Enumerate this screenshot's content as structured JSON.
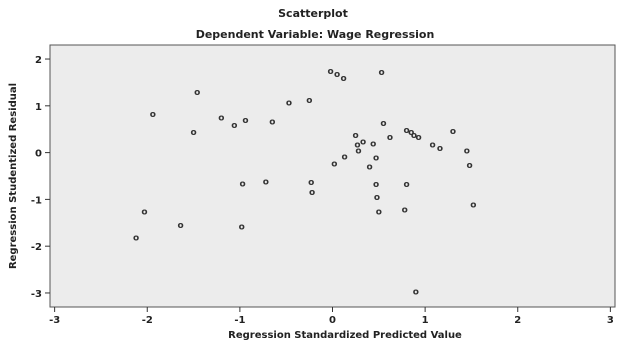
{
  "chart_data": {
    "type": "scatter",
    "title": "Scatterplot",
    "subtitle": "Dependent Variable: Wage Regression",
    "xlabel": "Regression Standardized Predicted Value",
    "ylabel": "Regression Studentized Residual",
    "xlim": [
      -3.05,
      3.05
    ],
    "ylim": [
      -3.3,
      2.3
    ],
    "xticks": [
      -3,
      -2,
      -1,
      0,
      1,
      2,
      3
    ],
    "yticks": [
      -3,
      -2,
      -1,
      0,
      1,
      2
    ],
    "xtick_labels": [
      "-3",
      "-2",
      "-1",
      "0",
      "1",
      "2",
      "3"
    ],
    "ytick_labels": [
      "-3",
      "-2",
      "-1",
      "0",
      "1",
      "2"
    ],
    "grid": false,
    "point_marker": "o",
    "points": [
      {
        "x": -2.12,
        "y": -1.81
      },
      {
        "x": -2.03,
        "y": -1.26
      },
      {
        "x": -1.94,
        "y": 0.83
      },
      {
        "x": -1.64,
        "y": -1.55
      },
      {
        "x": -1.5,
        "y": 0.44
      },
      {
        "x": -1.46,
        "y": 1.3
      },
      {
        "x": -1.2,
        "y": 0.75
      },
      {
        "x": -1.06,
        "y": 0.59
      },
      {
        "x": -0.98,
        "y": -1.58
      },
      {
        "x": -0.97,
        "y": -0.66
      },
      {
        "x": -0.94,
        "y": 0.7
      },
      {
        "x": -0.72,
        "y": -0.62
      },
      {
        "x": -0.65,
        "y": 0.67
      },
      {
        "x": -0.47,
        "y": 1.07
      },
      {
        "x": -0.25,
        "y": 1.12
      },
      {
        "x": -0.23,
        "y": -0.63
      },
      {
        "x": -0.22,
        "y": -0.84
      },
      {
        "x": -0.02,
        "y": 1.74
      },
      {
        "x": 0.05,
        "y": 1.68
      },
      {
        "x": 0.12,
        "y": 1.6
      },
      {
        "x": 0.02,
        "y": -0.23
      },
      {
        "x": 0.13,
        "y": -0.08
      },
      {
        "x": 0.25,
        "y": 0.38
      },
      {
        "x": 0.27,
        "y": 0.17
      },
      {
        "x": 0.28,
        "y": 0.05
      },
      {
        "x": 0.33,
        "y": 0.24
      },
      {
        "x": 0.4,
        "y": -0.3
      },
      {
        "x": 0.44,
        "y": 0.2
      },
      {
        "x": 0.47,
        "y": -0.1
      },
      {
        "x": 0.47,
        "y": -0.67
      },
      {
        "x": 0.48,
        "y": -0.95
      },
      {
        "x": 0.5,
        "y": -1.26
      },
      {
        "x": 0.53,
        "y": 1.72
      },
      {
        "x": 0.55,
        "y": 0.63
      },
      {
        "x": 0.62,
        "y": 0.33
      },
      {
        "x": 0.8,
        "y": 0.48
      },
      {
        "x": 0.85,
        "y": 0.44
      },
      {
        "x": 0.78,
        "y": -1.22
      },
      {
        "x": 0.8,
        "y": -0.67
      },
      {
        "x": 0.88,
        "y": 0.38
      },
      {
        "x": 0.93,
        "y": 0.33
      },
      {
        "x": 0.9,
        "y": -2.97
      },
      {
        "x": 1.08,
        "y": 0.17
      },
      {
        "x": 1.16,
        "y": 0.1
      },
      {
        "x": 1.3,
        "y": 0.46
      },
      {
        "x": 1.45,
        "y": 0.05
      },
      {
        "x": 1.48,
        "y": -0.27
      },
      {
        "x": 1.52,
        "y": -1.11
      }
    ]
  }
}
